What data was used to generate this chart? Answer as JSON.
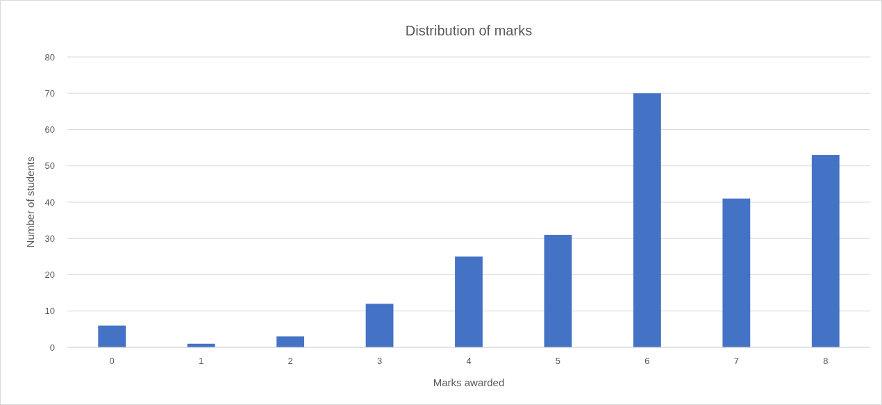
{
  "chart_data": {
    "type": "bar",
    "title": "Distribution of marks",
    "xlabel": "Marks awarded",
    "ylabel": "Number of students",
    "categories": [
      "0",
      "1",
      "2",
      "3",
      "4",
      "5",
      "6",
      "7",
      "8"
    ],
    "values": [
      6,
      1,
      3,
      12,
      25,
      31,
      70,
      41,
      53
    ],
    "color": "#4472c4",
    "ylim": [
      0,
      80
    ],
    "yticks": [
      0,
      10,
      20,
      30,
      40,
      50,
      60,
      70,
      80
    ],
    "grid": "y"
  }
}
